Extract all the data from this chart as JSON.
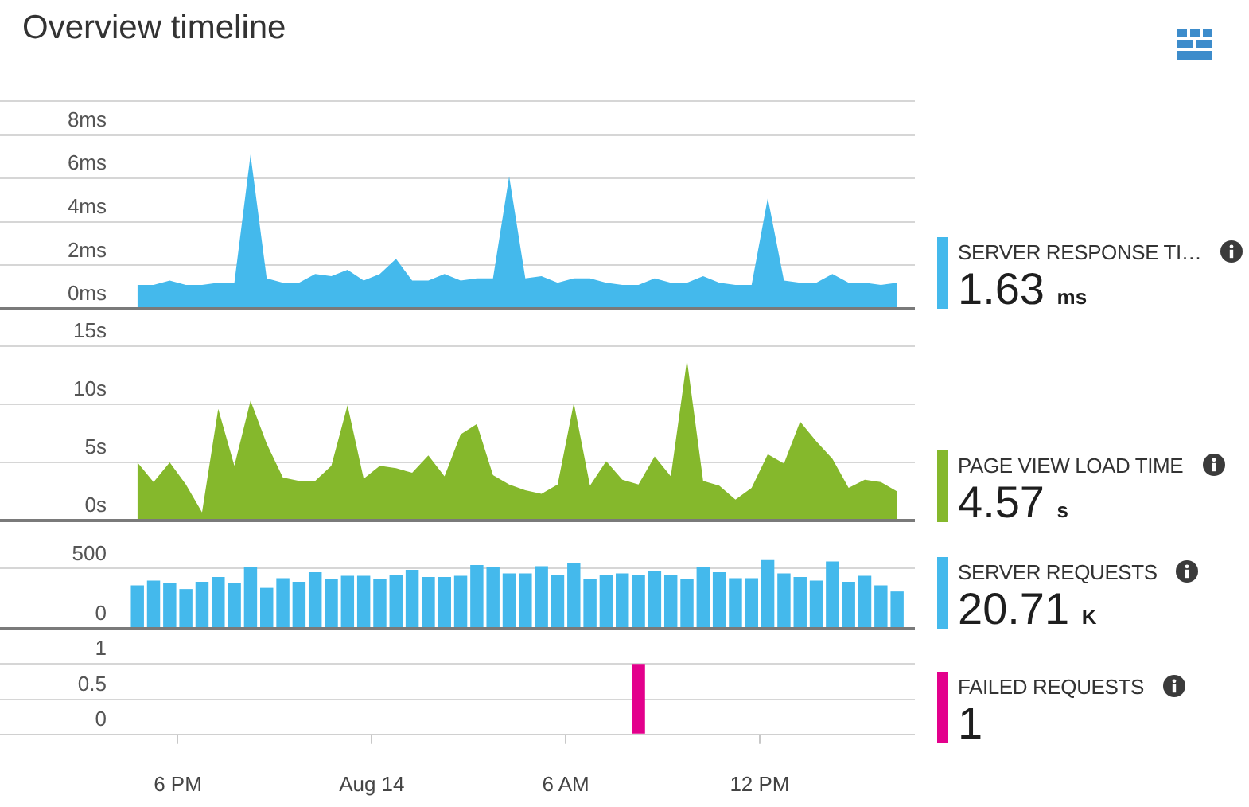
{
  "chart_data": [
    {
      "type": "area",
      "title": "Overview timeline",
      "x": [
        -7.25,
        -6.75,
        -6.25,
        -5.75,
        -5.25,
        -4.75,
        -4.25,
        -3.75,
        -3.25,
        -2.75,
        -2.25,
        -1.75,
        -1.25,
        -0.75,
        -0.25,
        0.25,
        0.75,
        1.25,
        1.75,
        2.25,
        2.75,
        3.25,
        3.75,
        4.25,
        4.75,
        5.25,
        5.75,
        6.25,
        6.75,
        7.25,
        7.75,
        8.25,
        8.75,
        9.25,
        9.75,
        10.25,
        10.75,
        11.25,
        11.75,
        12.25,
        12.75,
        13.25,
        13.75,
        14.25,
        14.75,
        15.25,
        15.75,
        16.25
      ],
      "series": [
        {
          "name": "SERVER RESPONSE TI…",
          "color": "#44b9ec",
          "values": [
            1.1,
            1.1,
            1.3,
            1.1,
            1.1,
            1.2,
            1.2,
            7.1,
            1.4,
            1.2,
            1.2,
            1.6,
            1.5,
            1.8,
            1.3,
            1.6,
            2.3,
            1.3,
            1.3,
            1.6,
            1.3,
            1.4,
            1.4,
            6.1,
            1.4,
            1.5,
            1.2,
            1.4,
            1.4,
            1.2,
            1.1,
            1.1,
            1.4,
            1.2,
            1.2,
            1.5,
            1.2,
            1.1,
            1.1,
            5.1,
            1.3,
            1.2,
            1.2,
            1.6,
            1.2,
            1.2,
            1.1,
            1.2
          ]
        }
      ],
      "xlim": [
        -11.5,
        16.8
      ],
      "ylim": [
        0,
        9.6
      ],
      "yticks": [
        {
          "value": 0,
          "label": "0ms"
        },
        {
          "value": 2,
          "label": "2ms"
        },
        {
          "value": 4,
          "label": "4ms"
        },
        {
          "value": 6,
          "label": "6ms"
        },
        {
          "value": 8,
          "label": "8ms"
        }
      ],
      "grid": "y",
      "legend": "right",
      "tick_labels": "y",
      "annotations": [
        "1.63 ms"
      ]
    },
    {
      "type": "area",
      "x": [
        -7.25,
        -6.75,
        -6.25,
        -5.75,
        -5.25,
        -4.75,
        -4.25,
        -3.75,
        -3.25,
        -2.75,
        -2.25,
        -1.75,
        -1.25,
        -0.75,
        -0.25,
        0.25,
        0.75,
        1.25,
        1.75,
        2.25,
        2.75,
        3.25,
        3.75,
        4.25,
        4.75,
        5.25,
        5.75,
        6.25,
        6.75,
        7.25,
        7.75,
        8.25,
        8.75,
        9.25,
        9.75,
        10.25,
        10.75,
        11.25,
        11.75,
        12.25,
        12.75,
        13.25,
        13.75,
        14.25,
        14.75,
        15.25,
        15.75,
        16.25
      ],
      "series": [
        {
          "name": "PAGE VIEW LOAD TIME",
          "color": "#85b82c",
          "values": [
            5.0,
            3.3,
            5.0,
            3.1,
            0.7,
            9.6,
            4.7,
            10.3,
            6.6,
            3.7,
            3.4,
            3.4,
            4.7,
            9.9,
            3.6,
            4.7,
            4.5,
            4.1,
            5.6,
            3.8,
            7.4,
            8.3,
            3.9,
            3.1,
            2.6,
            2.3,
            3.1,
            10.1,
            3.0,
            5.1,
            3.5,
            3.1,
            5.5,
            3.8,
            13.8,
            3.4,
            3.0,
            1.8,
            2.8,
            5.7,
            4.9,
            8.5,
            6.8,
            5.3,
            2.8,
            3.5,
            3.3,
            2.5
          ]
        }
      ],
      "xlim": [
        -11.5,
        16.8
      ],
      "ylim": [
        0,
        18.2
      ],
      "yticks": [
        {
          "value": 0,
          "label": "0s"
        },
        {
          "value": 5,
          "label": "5s"
        },
        {
          "value": 10,
          "label": "10s"
        },
        {
          "value": 15,
          "label": "15s"
        }
      ],
      "grid": "y",
      "legend": "right",
      "tick_labels": "y",
      "annotations": [
        "4.57 s"
      ]
    },
    {
      "type": "bar",
      "x": [
        -7.25,
        -6.75,
        -6.25,
        -5.75,
        -5.25,
        -4.75,
        -4.25,
        -3.75,
        -3.25,
        -2.75,
        -2.25,
        -1.75,
        -1.25,
        -0.75,
        -0.25,
        0.25,
        0.75,
        1.25,
        1.75,
        2.25,
        2.75,
        3.25,
        3.75,
        4.25,
        4.75,
        5.25,
        5.75,
        6.25,
        6.75,
        7.25,
        7.75,
        8.25,
        8.75,
        9.25,
        9.75,
        10.25,
        10.75,
        11.25,
        11.75,
        12.25,
        12.75,
        13.25,
        13.75,
        14.25,
        14.75,
        15.25,
        15.75,
        16.25
      ],
      "series": [
        {
          "name": "SERVER REQUESTS",
          "color": "#44b9ec",
          "values": [
            360,
            400,
            380,
            330,
            390,
            430,
            380,
            510,
            340,
            420,
            390,
            470,
            410,
            440,
            440,
            410,
            450,
            490,
            430,
            430,
            440,
            530,
            510,
            460,
            460,
            520,
            450,
            550,
            410,
            450,
            460,
            450,
            480,
            450,
            410,
            510,
            470,
            420,
            420,
            570,
            460,
            430,
            400,
            560,
            390,
            440,
            360,
            310
          ]
        }
      ],
      "xlim": [
        -11.5,
        16.8
      ],
      "ylim": [
        0,
        900
      ],
      "yticks": [
        0,
        500
      ],
      "grid": "y",
      "legend": "right",
      "tick_labels": "y",
      "annotations": [
        "20.71 K"
      ]
    },
    {
      "type": "bar",
      "x": [
        -7.25,
        -6.75,
        -6.25,
        -5.75,
        -5.25,
        -4.75,
        -4.25,
        -3.75,
        -3.25,
        -2.75,
        -2.25,
        -1.75,
        -1.25,
        -0.75,
        -0.25,
        0.25,
        0.75,
        1.25,
        1.75,
        2.25,
        2.75,
        3.25,
        3.75,
        4.25,
        4.75,
        5.25,
        5.75,
        6.25,
        6.75,
        7.25,
        7.75,
        8.25,
        8.75,
        9.25,
        9.75,
        10.25,
        10.75,
        11.25,
        11.75,
        12.25,
        12.75,
        13.25,
        13.75,
        14.25,
        14.75,
        15.25,
        15.75,
        16.25
      ],
      "series": [
        {
          "name": "FAILED REQUESTS",
          "color": "#e3008c",
          "values": [
            0,
            0,
            0,
            0,
            0,
            0,
            0,
            0,
            0,
            0,
            0,
            0,
            0,
            0,
            0,
            0,
            0,
            0,
            0,
            0,
            0,
            0,
            0,
            0,
            0,
            0,
            0,
            0,
            0,
            0,
            0,
            1,
            0,
            0,
            0,
            0,
            0,
            0,
            0,
            0,
            0,
            0,
            0,
            0,
            0,
            0,
            0,
            0
          ]
        }
      ],
      "xlim": [
        -11.5,
        16.8
      ],
      "xticks": [
        {
          "value": -6,
          "label": "6 PM"
        },
        {
          "value": 0,
          "label": "Aug 14"
        },
        {
          "value": 6,
          "label": "6 AM"
        },
        {
          "value": 12,
          "label": "12 PM"
        }
      ],
      "ylim": [
        0,
        1.5
      ],
      "yticks": [
        0,
        0.5,
        1
      ],
      "grid": "y",
      "legend": "right",
      "annotations": [
        "1"
      ]
    }
  ]
}
